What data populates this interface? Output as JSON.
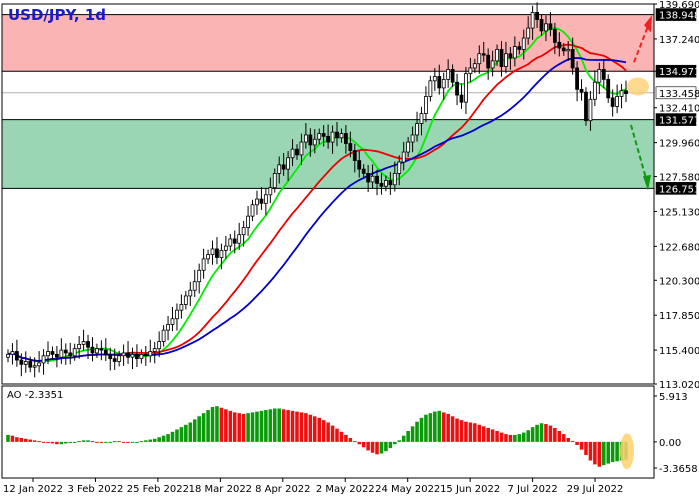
{
  "chart_data": {
    "type": "candlestick",
    "title": "USD/JPY, 1d",
    "price_axis": {
      "range": [
        113.02,
        139.69
      ],
      "ticks": [
        "139.690",
        "137.240",
        "134.971",
        "132.410",
        "129.960",
        "127.580",
        "125.130",
        "122.680",
        "120.300",
        "117.850",
        "115.400",
        "113.020"
      ]
    },
    "x_axis": {
      "labels": [
        "12 Jan 2022",
        "3 Feb 2022",
        "25 Feb 2022",
        "18 Mar 2022",
        "8 Apr 2022",
        "2 May 2022",
        "24 May 2022",
        "15 Jun 2022",
        "7 Jul 2022",
        "29 Jul 2022"
      ]
    },
    "zones": [
      {
        "name": "resistance",
        "from": 134.971,
        "to": 138.948,
        "color": "#fbb4b4"
      },
      {
        "name": "support",
        "from": 126.751,
        "to": 131.577,
        "color": "#9bd6b4"
      }
    ],
    "levels": [
      {
        "value": 138.948,
        "label": "138.948"
      },
      {
        "value": 134.971,
        "label": "134.971"
      },
      {
        "value": 131.577,
        "label": "131.577"
      },
      {
        "value": 126.751,
        "label": "126.751"
      }
    ],
    "current_price": {
      "value": 133.458,
      "label": "133.458"
    },
    "closes": [
      115.1,
      115.3,
      114.7,
      114.4,
      114.6,
      114.2,
      114.3,
      114.5,
      115.0,
      115.3,
      115.1,
      114.9,
      115.4,
      115.2,
      115.0,
      115.5,
      115.8,
      116.0,
      115.6,
      115.2,
      115.5,
      115.4,
      115.1,
      114.8,
      114.6,
      115.0,
      115.2,
      114.9,
      115.1,
      114.8,
      115.1,
      115.0,
      115.3,
      115.5,
      116.0,
      116.8,
      117.2,
      117.6,
      118.2,
      118.6,
      119.2,
      119.6,
      120.2,
      121.0,
      121.8,
      122.1,
      122.5,
      121.9,
      122.4,
      122.7,
      123.2,
      122.9,
      123.5,
      124.0,
      124.8,
      125.6,
      126.0,
      125.7,
      126.3,
      126.8,
      127.8,
      128.4,
      128.1,
      128.9,
      129.5,
      129.1,
      130.0,
      130.5,
      129.8,
      130.2,
      130.6,
      130.4,
      130.0,
      130.7,
      130.3,
      130.6,
      129.9,
      129.4,
      128.7,
      128.1,
      127.8,
      127.2,
      127.6,
      127.1,
      126.9,
      127.3,
      127.0,
      127.8,
      128.6,
      129.3,
      130.0,
      130.5,
      131.3,
      132.0,
      133.2,
      134.3,
      134.6,
      133.8,
      134.4,
      135.1,
      134.2,
      133.3,
      132.8,
      134.8,
      135.2,
      135.5,
      136.2,
      136.1,
      135.2,
      135.7,
      136.5,
      135.3,
      136.2,
      135.9,
      136.7,
      136.5,
      137.3,
      138.0,
      139.1,
      138.6,
      137.8,
      138.3,
      137.9,
      137.0,
      136.6,
      136.4,
      136.5,
      135.2,
      133.7,
      133.5,
      131.5,
      133.0,
      134.2,
      135.1,
      134.4,
      133.1,
      132.5,
      133.2,
      133.6,
      133.4
    ],
    "moving_averages": [
      {
        "color": "#00ee00",
        "period": 8
      },
      {
        "color": "#ee0000",
        "period": 21
      },
      {
        "color": "#0000c8",
        "period": 34
      }
    ],
    "forecast_arrows": [
      {
        "direction": "up",
        "color": "#ee2222"
      },
      {
        "direction": "down",
        "color": "#119911"
      }
    ],
    "ao": {
      "label": "AO -2.3351",
      "range": [
        -3.3658,
        5.913
      ],
      "ticks": [
        "5.913",
        "0.00",
        "-3.3658"
      ],
      "values": [
        0.9,
        0.8,
        0.6,
        0.5,
        0.4,
        0.3,
        0.2,
        0.1,
        0.0,
        -0.1,
        -0.2,
        -0.3,
        -0.3,
        -0.2,
        -0.1,
        0.0,
        0.1,
        0.2,
        0.2,
        0.1,
        0.0,
        -0.1,
        -0.1,
        0.0,
        0.1,
        0.1,
        0.0,
        -0.1,
        -0.1,
        0.0,
        0.1,
        0.2,
        0.3,
        0.4,
        0.6,
        0.8,
        1.0,
        1.3,
        1.6,
        1.9,
        2.2,
        2.5,
        2.9,
        3.3,
        3.7,
        4.1,
        4.5,
        4.6,
        4.4,
        4.2,
        4.0,
        3.8,
        3.7,
        3.6,
        3.7,
        3.8,
        3.9,
        4.0,
        4.1,
        4.2,
        4.3,
        4.3,
        4.2,
        4.1,
        4.0,
        3.9,
        3.8,
        3.7,
        3.5,
        3.3,
        3.1,
        2.8,
        2.5,
        2.1,
        1.7,
        1.3,
        0.9,
        0.5,
        0.1,
        -0.3,
        -0.7,
        -1.1,
        -1.4,
        -1.6,
        -1.5,
        -1.2,
        -0.8,
        -0.3,
        0.2,
        0.8,
        1.4,
        2.0,
        2.6,
        3.1,
        3.5,
        3.7,
        3.9,
        4.0,
        3.8,
        3.6,
        3.3,
        3.0,
        2.8,
        2.6,
        2.5,
        2.4,
        2.2,
        2.0,
        1.8,
        1.6,
        1.4,
        1.2,
        1.0,
        0.9,
        0.9,
        1.0,
        1.2,
        1.5,
        1.9,
        2.2,
        2.4,
        2.3,
        2.1,
        1.8,
        1.4,
        1.0,
        0.5,
        0.1,
        -0.4,
        -1.0,
        -1.7,
        -2.4,
        -2.9,
        -3.2,
        -3.0,
        -2.8,
        -2.6,
        -2.5,
        -2.4,
        -2.3
      ]
    }
  }
}
